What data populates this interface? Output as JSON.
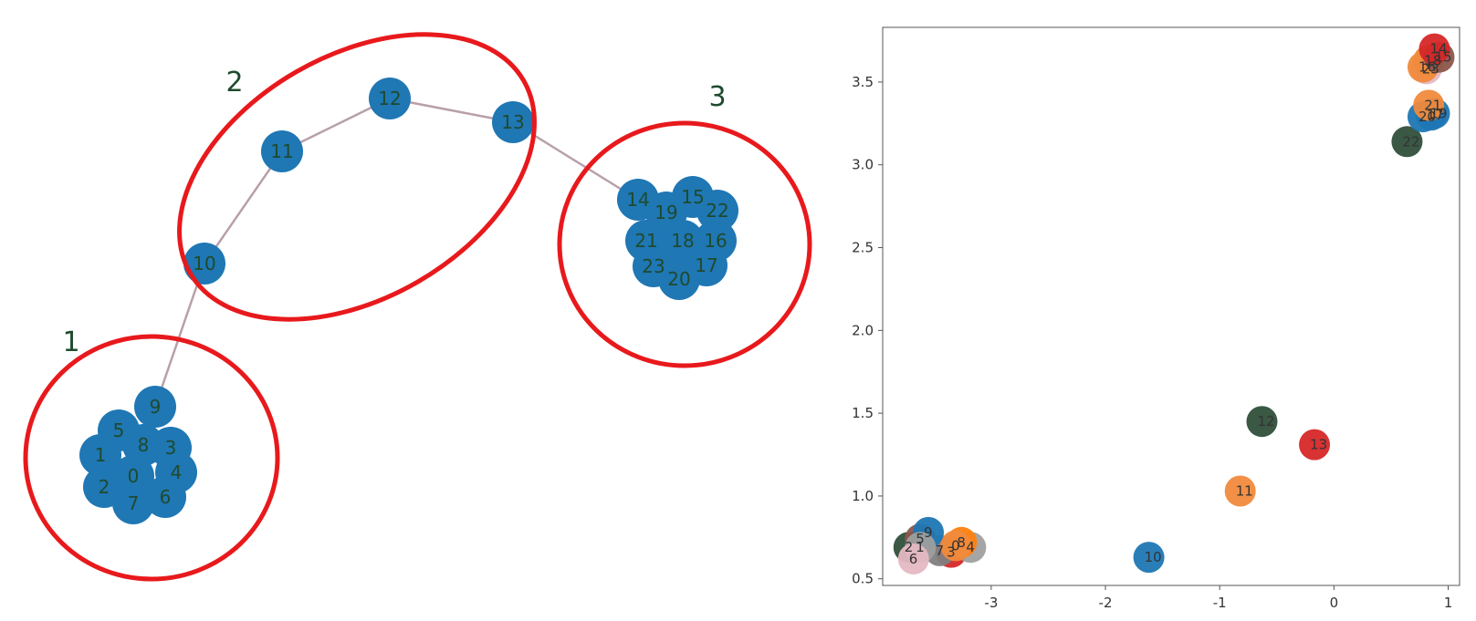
{
  "graph": {
    "node_color": "#1f77b4",
    "edge_color": "#b8a0a8",
    "circle_color": "#e8191c",
    "label_color": "#1f4a2e",
    "group_labels": [
      "1",
      "2",
      "3"
    ],
    "nodes": [
      "0",
      "1",
      "2",
      "3",
      "4",
      "5",
      "6",
      "7",
      "8",
      "9",
      "10",
      "11",
      "12",
      "13",
      "14",
      "15",
      "16",
      "17",
      "18",
      "19",
      "20",
      "21",
      "22",
      "23"
    ],
    "edges": [
      [
        "9",
        "10"
      ],
      [
        "10",
        "11"
      ],
      [
        "11",
        "12"
      ],
      [
        "12",
        "13"
      ],
      [
        "13",
        "14"
      ]
    ]
  },
  "chart_data": {
    "type": "scatter",
    "title": "",
    "xlabel": "",
    "ylabel": "",
    "xlim": [
      -3.95,
      1.1
    ],
    "ylim": [
      0.46,
      3.83
    ],
    "xticks": [
      "-3",
      "-2",
      "-1",
      "0",
      "1"
    ],
    "xtick_values": [
      -3,
      -2,
      -1,
      0,
      1
    ],
    "yticks": [
      "0.5",
      "1.0",
      "1.5",
      "2.0",
      "2.5",
      "3.0",
      "3.5"
    ],
    "ytick_values": [
      0.5,
      1.0,
      1.5,
      2.0,
      2.5,
      3.0,
      3.5
    ],
    "grid": false,
    "points": [
      {
        "label": "3",
        "x": -3.35,
        "y": 0.66,
        "color": "#d62728"
      },
      {
        "label": "2",
        "x": -3.72,
        "y": 0.69,
        "color": "#2f4f3a"
      },
      {
        "label": "5",
        "x": -3.62,
        "y": 0.74,
        "color": "#8c564b"
      },
      {
        "label": "7",
        "x": -3.45,
        "y": 0.67,
        "color": "#7f7f7f"
      },
      {
        "label": "4",
        "x": -3.18,
        "y": 0.69,
        "color": "#a0a0a0"
      },
      {
        "label": "8",
        "x": -3.26,
        "y": 0.72,
        "color": "#ff7f0e"
      },
      {
        "label": "0",
        "x": -3.31,
        "y": 0.7,
        "color": "#f08a3c"
      },
      {
        "label": "9",
        "x": -3.55,
        "y": 0.78,
        "color": "#1f77b4"
      },
      {
        "label": "1",
        "x": -3.62,
        "y": 0.69,
        "color": "#9e9e9e"
      },
      {
        "label": "6",
        "x": -3.68,
        "y": 0.62,
        "color": "#e5b8c3"
      },
      {
        "label": "10",
        "x": -1.62,
        "y": 0.63,
        "color": "#1f77b4"
      },
      {
        "label": "11",
        "x": -0.82,
        "y": 1.03,
        "color": "#f08a3c"
      },
      {
        "label": "12",
        "x": -0.63,
        "y": 1.45,
        "color": "#2f4f3a"
      },
      {
        "label": "13",
        "x": -0.17,
        "y": 1.31,
        "color": "#d62728"
      },
      {
        "label": "22",
        "x": 0.64,
        "y": 3.14,
        "color": "#2f4f3a"
      },
      {
        "label": "20",
        "x": 0.78,
        "y": 3.29,
        "color": "#1f77b4"
      },
      {
        "label": "17",
        "x": 0.85,
        "y": 3.3,
        "color": "#1f77b4"
      },
      {
        "label": "19",
        "x": 0.88,
        "y": 3.31,
        "color": "#1f77b4"
      },
      {
        "label": "21",
        "x": 0.83,
        "y": 3.36,
        "color": "#f08a3c"
      },
      {
        "label": "23",
        "x": 0.81,
        "y": 3.58,
        "color": "#e5b8c3"
      },
      {
        "label": "16",
        "x": 0.78,
        "y": 3.59,
        "color": "#f08a3c"
      },
      {
        "label": "18",
        "x": 0.83,
        "y": 3.63,
        "color": "#f08a3c"
      },
      {
        "label": "15",
        "x": 0.92,
        "y": 3.65,
        "color": "#8c564b"
      },
      {
        "label": "14",
        "x": 0.88,
        "y": 3.7,
        "color": "#d62728"
      }
    ]
  }
}
